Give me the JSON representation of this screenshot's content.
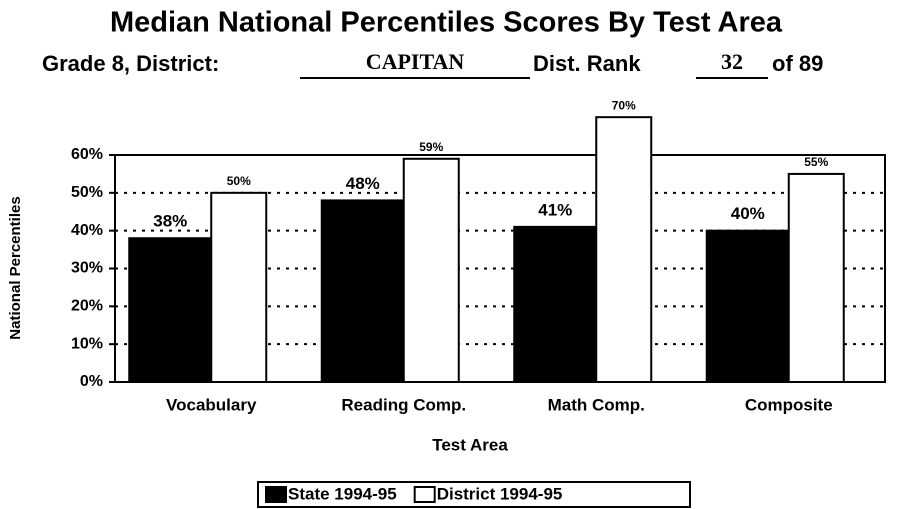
{
  "chart_data": {
    "type": "bar",
    "title": "Median National Percentiles Scores By Test Area",
    "subtitle": [
      "Grade 8, District:",
      "CAPITAN",
      "Dist. Rank",
      "32",
      "of 89"
    ],
    "x_label": "Test Area",
    "y_label": "National Percentiles",
    "categories": [
      "Vocabulary",
      "Reading Comp.",
      "Math Comp.",
      "Composite"
    ],
    "series": [
      {
        "name": "State 1994-95",
        "color": "#000000",
        "values": [
          38,
          48,
          41,
          40
        ],
        "value_labels": [
          "38%",
          "48%",
          "41%",
          "40%"
        ]
      },
      {
        "name": "District 1994-95",
        "color": "#ffffff",
        "values": [
          50,
          59,
          70,
          55
        ],
        "value_labels": [
          "50%",
          "59%",
          "70%",
          "55%"
        ]
      }
    ],
    "ylim": [
      0,
      60
    ],
    "yticks": [
      {
        "value": 0,
        "label": "0%"
      },
      {
        "value": 10,
        "label": "10%"
      },
      {
        "value": 20,
        "label": "20%"
      },
      {
        "value": 30,
        "label": "30%"
      },
      {
        "value": 40,
        "label": "40%"
      },
      {
        "value": 50,
        "label": "50%"
      },
      {
        "value": 60,
        "label": "60%"
      }
    ],
    "grid": true,
    "legend": "bottom"
  }
}
